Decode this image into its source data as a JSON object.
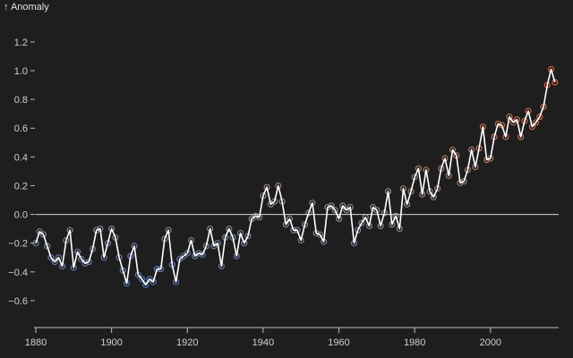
{
  "chart_data": {
    "type": "scatter",
    "title": "",
    "ylabel": "↑ Anomaly",
    "xlabel": "",
    "xlim": [
      1880,
      2018
    ],
    "ylim": [
      -0.75,
      1.38
    ],
    "x_ticks": [
      1880,
      1900,
      1920,
      1940,
      1960,
      1980,
      2000
    ],
    "y_ticks": [
      -0.6,
      -0.4,
      -0.2,
      0.0,
      0.2,
      0.4,
      0.6,
      0.8,
      1.0,
      1.2
    ],
    "y_tick_labels": [
      "−0.6",
      "−0.4",
      "−0.2",
      "0.0",
      "0.2",
      "0.4",
      "0.6",
      "0.8",
      "1.0",
      "1.2"
    ],
    "x_tick_labels": [
      "1880",
      "1900",
      "1920",
      "1940",
      "1960",
      "1980",
      "2000"
    ],
    "grid": false,
    "zero_line": true,
    "color_scale": {
      "low": "#3b63c9",
      "mid": "#8a8a8a",
      "high": "#e2552c",
      "domain": [
        -0.7,
        0.0,
        1.0
      ]
    },
    "series": [
      {
        "type": "scatter",
        "x": [
          1880,
          1881,
          1882,
          1883,
          1884,
          1885,
          1886,
          1887,
          1888,
          1889,
          1890,
          1891,
          1892,
          1893,
          1894,
          1895,
          1896,
          1897,
          1898,
          1899,
          1900,
          1901,
          1902,
          1903,
          1904,
          1905,
          1906,
          1907,
          1908,
          1909,
          1910,
          1911,
          1912,
          1913,
          1914,
          1915,
          1916,
          1917,
          1918,
          1919,
          1920,
          1921,
          1922,
          1923,
          1924,
          1925,
          1926,
          1927,
          1928,
          1929,
          1930,
          1931,
          1932,
          1933,
          1934,
          1935,
          1936,
          1937,
          1938,
          1939,
          1940,
          1941,
          1942,
          1943,
          1944,
          1945,
          1946,
          1947,
          1948,
          1949,
          1950,
          1951,
          1952,
          1953,
          1954,
          1955,
          1956,
          1957,
          1958,
          1959,
          1960,
          1961,
          1962,
          1963,
          1964,
          1965,
          1966,
          1967,
          1968,
          1969,
          1970,
          1971,
          1972,
          1973,
          1974,
          1975,
          1976,
          1977,
          1978,
          1979,
          1980,
          1981,
          1982,
          1983,
          1984,
          1985,
          1986,
          1987,
          1988,
          1989,
          1990,
          1991,
          1992,
          1993,
          1994,
          1995,
          1996,
          1997,
          1998,
          1999,
          2000,
          2001,
          2002,
          2003,
          2004,
          2005,
          2006,
          2007,
          2008,
          2009,
          2010,
          2011,
          2012,
          2013,
          2014,
          2015,
          2016,
          2017
        ],
        "y": [
          -0.2,
          -0.12,
          -0.14,
          -0.22,
          -0.3,
          -0.33,
          -0.3,
          -0.36,
          -0.18,
          -0.11,
          -0.37,
          -0.26,
          -0.31,
          -0.34,
          -0.33,
          -0.24,
          -0.11,
          -0.1,
          -0.3,
          -0.2,
          -0.1,
          -0.16,
          -0.3,
          -0.39,
          -0.48,
          -0.29,
          -0.22,
          -0.42,
          -0.45,
          -0.49,
          -0.45,
          -0.47,
          -0.38,
          -0.38,
          -0.17,
          -0.11,
          -0.35,
          -0.47,
          -0.31,
          -0.29,
          -0.27,
          -0.18,
          -0.29,
          -0.27,
          -0.28,
          -0.22,
          -0.1,
          -0.22,
          -0.2,
          -0.36,
          -0.16,
          -0.1,
          -0.16,
          -0.29,
          -0.13,
          -0.2,
          -0.15,
          -0.03,
          -0.01,
          -0.02,
          0.13,
          0.19,
          0.07,
          0.09,
          0.2,
          0.09,
          -0.07,
          -0.03,
          -0.11,
          -0.11,
          -0.18,
          -0.07,
          0.01,
          0.08,
          -0.13,
          -0.14,
          -0.19,
          0.05,
          0.06,
          0.03,
          -0.03,
          0.06,
          0.03,
          0.05,
          -0.2,
          -0.11,
          -0.06,
          -0.02,
          -0.08,
          0.05,
          0.03,
          -0.08,
          0.01,
          0.16,
          -0.07,
          -0.01,
          -0.1,
          0.18,
          0.07,
          0.16,
          0.26,
          0.32,
          0.14,
          0.31,
          0.16,
          0.12,
          0.18,
          0.32,
          0.39,
          0.27,
          0.45,
          0.41,
          0.22,
          0.23,
          0.31,
          0.45,
          0.33,
          0.46,
          0.61,
          0.38,
          0.39,
          0.54,
          0.63,
          0.62,
          0.54,
          0.68,
          0.64,
          0.66,
          0.54,
          0.65,
          0.72,
          0.61,
          0.64,
          0.68,
          0.75,
          0.9,
          1.01,
          0.92
        ]
      },
      {
        "name": "",
        "type": "line",
        "x": [
          1880,
          1881,
          1882,
          1883,
          1884,
          1885,
          1886,
          1887,
          1888,
          1889,
          1890,
          1891,
          1892,
          1893,
          1894,
          1895,
          1896,
          1897,
          1898,
          1899,
          1900,
          1901,
          1902,
          1903,
          1904,
          1905,
          1906,
          1907,
          1908,
          1909,
          1910,
          1911,
          1912,
          1913,
          1914,
          1915,
          1916,
          1917,
          1918,
          1919,
          1920,
          1921,
          1922,
          1923,
          1924,
          1925,
          1926,
          1927,
          1928,
          1929,
          1930,
          1931,
          1932,
          1933,
          1934,
          1935,
          1936,
          1937,
          1938,
          1939,
          1940,
          1941,
          1942,
          1943,
          1944,
          1945,
          1946,
          1947,
          1948,
          1949,
          1950,
          1951,
          1952,
          1953,
          1954,
          1955,
          1956,
          1957,
          1958,
          1959,
          1960,
          1961,
          1962,
          1963,
          1964,
          1965,
          1966,
          1967,
          1968,
          1969,
          1970,
          1971,
          1972,
          1973,
          1974,
          1975,
          1976,
          1977,
          1978,
          1979,
          1980,
          1981,
          1982,
          1983,
          1984,
          1985,
          1986,
          1987,
          1988,
          1989,
          1990,
          1991,
          1992,
          1993,
          1994,
          1995,
          1996,
          1997,
          1998,
          1999,
          2000,
          2001,
          2002,
          2003,
          2004,
          2005,
          2006,
          2007,
          2008,
          2009,
          2010,
          2011,
          2012,
          2013,
          2014,
          2015,
          2016,
          2017
        ],
        "y": [
          -0.2,
          -0.12,
          -0.14,
          -0.22,
          -0.3,
          -0.33,
          -0.3,
          -0.36,
          -0.18,
          -0.11,
          -0.37,
          -0.26,
          -0.31,
          -0.34,
          -0.33,
          -0.24,
          -0.11,
          -0.1,
          -0.3,
          -0.2,
          -0.1,
          -0.16,
          -0.3,
          -0.39,
          -0.48,
          -0.29,
          -0.22,
          -0.42,
          -0.45,
          -0.49,
          -0.45,
          -0.47,
          -0.38,
          -0.38,
          -0.17,
          -0.11,
          -0.35,
          -0.47,
          -0.31,
          -0.29,
          -0.27,
          -0.18,
          -0.29,
          -0.27,
          -0.28,
          -0.22,
          -0.1,
          -0.22,
          -0.2,
          -0.36,
          -0.16,
          -0.1,
          -0.16,
          -0.29,
          -0.13,
          -0.2,
          -0.15,
          -0.03,
          -0.01,
          -0.02,
          0.13,
          0.19,
          0.07,
          0.09,
          0.2,
          0.09,
          -0.07,
          -0.03,
          -0.11,
          -0.11,
          -0.18,
          -0.07,
          0.01,
          0.08,
          -0.13,
          -0.14,
          -0.19,
          0.05,
          0.06,
          0.03,
          -0.03,
          0.06,
          0.03,
          0.05,
          -0.2,
          -0.11,
          -0.06,
          -0.02,
          -0.08,
          0.05,
          0.03,
          -0.08,
          0.01,
          0.16,
          -0.07,
          -0.01,
          -0.1,
          0.18,
          0.07,
          0.16,
          0.26,
          0.32,
          0.14,
          0.31,
          0.16,
          0.12,
          0.18,
          0.32,
          0.39,
          0.27,
          0.45,
          0.41,
          0.22,
          0.23,
          0.31,
          0.45,
          0.33,
          0.46,
          0.61,
          0.38,
          0.39,
          0.54,
          0.63,
          0.62,
          0.54,
          0.68,
          0.64,
          0.66,
          0.54,
          0.65,
          0.72,
          0.61,
          0.64,
          0.68,
          0.75,
          0.9,
          1.01,
          0.92
        ],
        "color": "#ffffff"
      }
    ]
  }
}
